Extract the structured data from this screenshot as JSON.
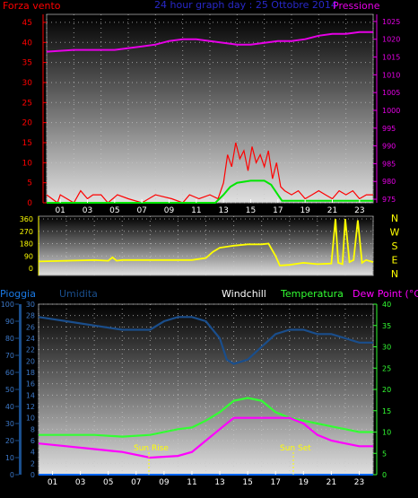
{
  "header": {
    "left_label": "Forza vento",
    "title": "24 hour graph day : 25 Ottobre 2014",
    "right_label": "Pressione"
  },
  "compass": [
    "N",
    "W",
    "S",
    "E",
    "N"
  ],
  "legend_bottom": {
    "rain": "Pioggia",
    "humidity": "Umidita",
    "windchill": "Windchill",
    "temperature": "Temperatura",
    "dewpoint": "Dew Point (°C)"
  },
  "markers": {
    "sunrise": "Sun Rise",
    "sunset": "Sun Set"
  },
  "colors": {
    "wind": "#ff0000",
    "wind_avg": "#00e600",
    "pressure": "#e600e6",
    "direction": "#ffff00",
    "humidity": "#1a4e8c",
    "temperature": "#33ff33",
    "dewpoint": "#ff00ff",
    "rain": "#0066ff",
    "title": "#2828c8"
  },
  "chart_data": [
    {
      "type": "line",
      "name": "wind-pressure",
      "x_ticks": [
        "01",
        "03",
        "05",
        "07",
        "09",
        "11",
        "13",
        "15",
        "17",
        "19",
        "21",
        "23"
      ],
      "xlim": [
        0,
        24
      ],
      "y_left_ticks": [
        0,
        5,
        10,
        15,
        20,
        25,
        30,
        35,
        40,
        45
      ],
      "ylim_left": [
        0,
        47
      ],
      "y_right_ticks": [
        975,
        980,
        985,
        990,
        995,
        1000,
        1005,
        1010,
        1015,
        1020,
        1025
      ],
      "ylim_right": [
        974,
        1027
      ],
      "grid": true,
      "series": [
        {
          "axis": "right",
          "x": [
            0,
            2,
            5,
            7,
            8,
            9,
            10,
            11,
            12,
            13,
            14,
            15,
            16,
            17,
            18,
            19,
            20,
            21,
            22,
            23,
            24
          ],
          "y": [
            1016.5,
            1017.0,
            1017.0,
            1018.0,
            1018.5,
            1019.5,
            1020.0,
            1020.0,
            1019.5,
            1019.0,
            1018.5,
            1018.5,
            1019.0,
            1019.5,
            1019.5,
            1020.0,
            1021.0,
            1021.5,
            1021.5,
            1022.0,
            1022.0
          ]
        },
        {
          "axis": "left",
          "x": [
            0,
            12.4,
            13,
            13.5,
            14,
            15,
            16,
            16.5,
            17,
            17.3,
            24
          ],
          "y": [
            0,
            0,
            2,
            4,
            5,
            5.5,
            5.5,
            4.5,
            2,
            0.5,
            0.5
          ]
        },
        {
          "axis": "left",
          "x": [
            0,
            0.8,
            1.0,
            2.0,
            2.5,
            3.0,
            3.4,
            4.0,
            4.5,
            5.2,
            6.0,
            7.0,
            8.0,
            9.2,
            10.0,
            10.5,
            11.2,
            12.0,
            12.6,
            13.0,
            13.3,
            13.6,
            13.9,
            14.2,
            14.5,
            14.8,
            15.1,
            15.4,
            15.7,
            16.0,
            16.3,
            16.6,
            16.9,
            17.2,
            17.5,
            18.0,
            18.5,
            19.0,
            19.5,
            20.0,
            20.5,
            21.0,
            21.5,
            22.0,
            22.5,
            23.0,
            23.5,
            24.0
          ],
          "y": [
            2,
            0,
            2,
            0,
            3,
            1,
            2,
            2,
            0,
            2,
            1,
            0,
            2,
            1,
            0,
            2,
            1,
            2,
            1,
            5,
            12,
            9,
            15,
            11,
            13,
            8,
            14,
            10,
            12,
            9,
            13,
            6,
            10,
            4,
            3,
            2,
            3,
            1,
            2,
            3,
            2,
            1,
            3,
            2,
            3,
            1,
            2,
            2
          ]
        }
      ]
    },
    {
      "type": "line",
      "name": "wind-direction",
      "x_ticks": [
        "01",
        "03",
        "05",
        "07",
        "09",
        "11",
        "13",
        "15",
        "17",
        "19",
        "21",
        "23"
      ],
      "xlim": [
        0,
        24
      ],
      "y_ticks": [
        0,
        90,
        180,
        270,
        360
      ],
      "ylim": [
        0,
        360
      ],
      "grid": true,
      "series": [
        {
          "x": [
            0,
            2,
            4,
            5,
            5.3,
            5.6,
            6,
            8,
            10,
            11,
            12,
            12.5,
            13,
            14,
            15,
            16,
            16.5,
            17,
            17.3,
            18,
            19,
            20,
            21,
            21.3,
            21.5,
            21.8,
            22,
            22.3,
            22.6,
            22.9,
            23.2,
            23.5,
            24
          ],
          "y": [
            50,
            55,
            60,
            55,
            80,
            55,
            60,
            60,
            60,
            60,
            75,
            120,
            150,
            165,
            175,
            175,
            180,
            90,
            20,
            25,
            40,
            30,
            35,
            360,
            40,
            30,
            360,
            45,
            60,
            350,
            40,
            60,
            45
          ]
        }
      ]
    },
    {
      "type": "line",
      "name": "temperature-humidity",
      "x_ticks": [
        "01",
        "03",
        "05",
        "07",
        "09",
        "11",
        "13",
        "15",
        "17",
        "19",
        "21",
        "23"
      ],
      "xlim": [
        0,
        24
      ],
      "y_left_ticks": [
        0,
        2,
        4,
        6,
        8,
        10,
        12,
        14,
        16,
        18,
        20,
        22,
        24,
        26,
        28,
        30
      ],
      "ylim_left": [
        0,
        30
      ],
      "y_hum_ticks": [
        0,
        10,
        20,
        30,
        40,
        50,
        60,
        70,
        80,
        90,
        100
      ],
      "ylim_hum": [
        0,
        100
      ],
      "y_right_ticks": [
        0,
        5,
        10,
        15,
        20,
        25,
        30,
        35,
        40
      ],
      "ylim_right": [
        0,
        40
      ],
      "grid": true,
      "series": [
        {
          "axis": "right",
          "x": [
            0,
            2,
            4,
            6,
            8,
            9,
            10,
            11,
            12,
            13,
            13.5,
            14,
            15,
            16,
            17,
            18,
            19,
            20,
            21,
            22,
            23,
            24
          ],
          "y": [
            37,
            36,
            35,
            34,
            34,
            36,
            37,
            37,
            36,
            32,
            27,
            26,
            27,
            30,
            33,
            34,
            34,
            33,
            33,
            32,
            31,
            31
          ]
        },
        {
          "axis": "left",
          "x": [
            0,
            2,
            4,
            6,
            8,
            10,
            11,
            12,
            13,
            14,
            15,
            16,
            17,
            18,
            19,
            20,
            21,
            22,
            23,
            24
          ],
          "y": [
            7,
            7,
            7,
            6.7,
            7,
            8,
            8.3,
            9.5,
            11,
            13,
            13.5,
            13,
            11,
            10,
            9.5,
            9,
            8.5,
            8,
            7.5,
            7.5
          ]
        },
        {
          "axis": "left",
          "x": [
            0,
            2,
            4,
            6,
            8,
            10,
            11,
            12,
            13,
            14,
            15,
            16,
            17,
            18,
            19,
            20,
            21,
            22,
            23,
            24
          ],
          "y": [
            5.5,
            5,
            4.5,
            4,
            3,
            3.3,
            4,
            6,
            8,
            10,
            10,
            10,
            10,
            10,
            9,
            7,
            6,
            5.5,
            5,
            5
          ]
        },
        {
          "axis": "left",
          "x": [
            0,
            24
          ],
          "y": [
            0,
            0
          ]
        }
      ]
    }
  ]
}
